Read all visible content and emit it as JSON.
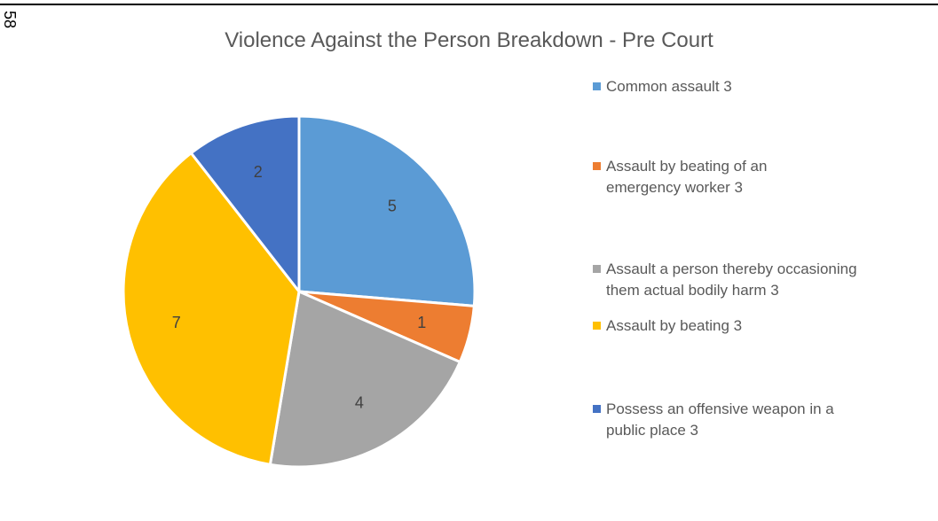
{
  "page_number": "58",
  "chart_data": {
    "type": "pie",
    "title": "Violence Against the Person Breakdown - Pre Court",
    "legend_position": "right",
    "slices": [
      {
        "value": 5,
        "data_label": "5",
        "legend_label": "Common assault 3",
        "color": "#5B9BD5"
      },
      {
        "value": 1,
        "data_label": "1",
        "legend_label": "Assault by beating of an emergency worker 3",
        "color": "#ED7D31"
      },
      {
        "value": 4,
        "data_label": "4",
        "legend_label": "Assault a person thereby occasioning them actual bodily harm 3",
        "color": "#A5A5A5"
      },
      {
        "value": 7,
        "data_label": "7",
        "legend_label": "Assault by beating 3",
        "color": "#FFC000"
      },
      {
        "value": 2,
        "data_label": "2",
        "legend_label": "Possess an offensive weapon in a public place 3",
        "color": "#4472C4"
      }
    ]
  }
}
